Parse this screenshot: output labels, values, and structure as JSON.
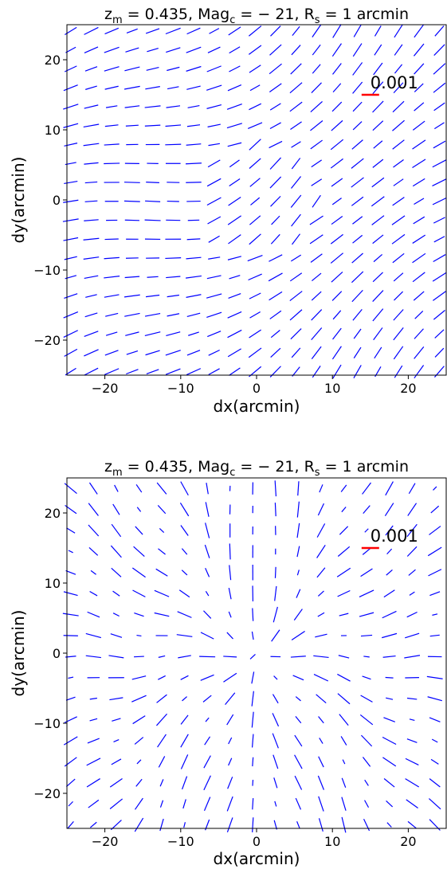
{
  "chart_data": [
    {
      "type": "quiver",
      "title": "z_m = 0.435, Mag_c = − 21, R_s = 1 arcmin",
      "xlabel": "dx(arcmin)",
      "ylabel": "dy(arcmin)",
      "xlim": [
        -25,
        25
      ],
      "ylim": [
        -25,
        25
      ],
      "xticks": [
        "−20",
        "−10",
        "0",
        "10",
        "20"
      ],
      "yticks": [
        "−20",
        "−10",
        "0",
        "10",
        "20"
      ],
      "grid": false,
      "field": "tangential",
      "grid_spacing_arcmin": 2.7,
      "stick_color": "#0000ff",
      "key": {
        "label": "0.001",
        "color": "#ff0000",
        "x": 15,
        "y": 15
      }
    },
    {
      "type": "quiver",
      "title": "z_m = 0.435, Mag_c = − 21, R_s = 1 arcmin",
      "xlabel": "dx(arcmin)",
      "ylabel": "dy(arcmin)",
      "xlim": [
        -25,
        25
      ],
      "ylim": [
        -25,
        25
      ],
      "xticks": [
        "−20",
        "−10",
        "0",
        "10",
        "20"
      ],
      "yticks": [
        "−20",
        "−10",
        "0",
        "10",
        "20"
      ],
      "grid": false,
      "field": "radial",
      "grid_spacing_arcmin": 3.0,
      "stick_color": "#0000ff",
      "key": {
        "label": "0.001",
        "color": "#ff0000",
        "x": 15,
        "y": 15
      }
    }
  ]
}
